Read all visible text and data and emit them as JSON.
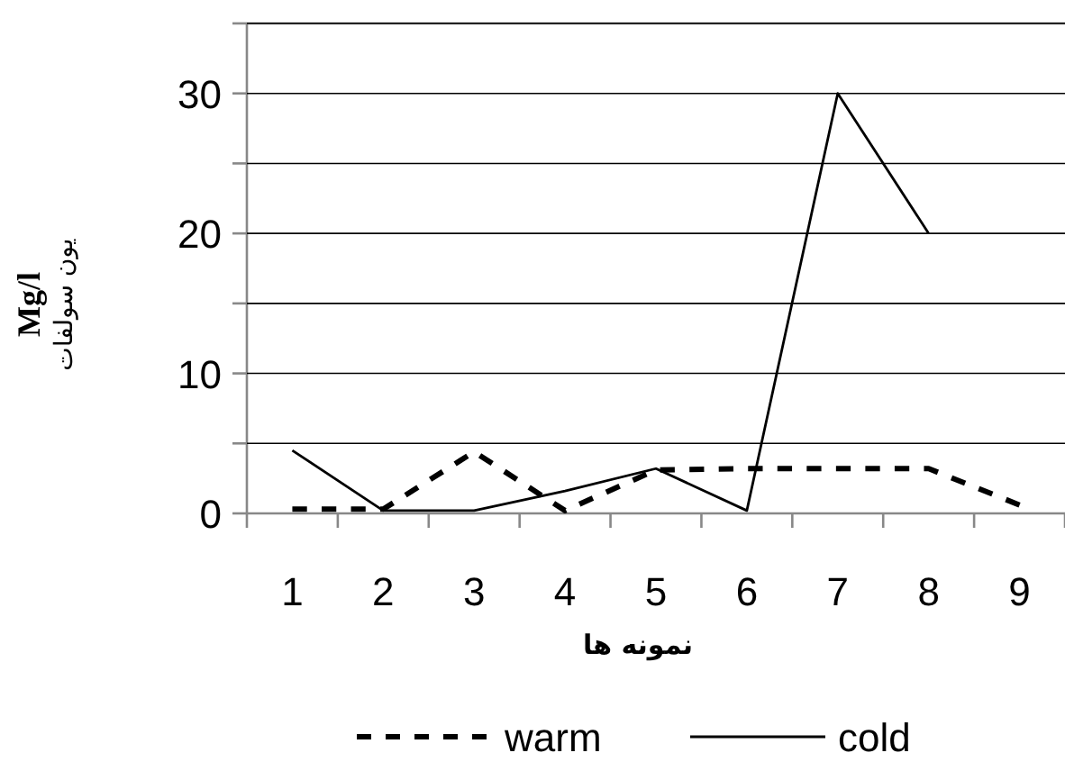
{
  "chart_data": {
    "type": "line",
    "xlabel": "نمونه ها",
    "ylabel": "Mg/l\nیون سولفات",
    "categories": [
      "1",
      "2",
      "3",
      "4",
      "5",
      "6",
      "7",
      "8",
      "9"
    ],
    "series": [
      {
        "name": "warm",
        "color": "#000000",
        "line_style": "dashed",
        "values": [
          0.3,
          0.3,
          4.4,
          0.2,
          3.1,
          3.2,
          3.2,
          3.2,
          0.6
        ]
      },
      {
        "name": "cold",
        "color": "#000000",
        "line_style": "solid",
        "values": [
          4.5,
          0.2,
          0.2,
          1.6,
          3.2,
          0.2,
          30,
          20,
          null
        ]
      }
    ],
    "ylim": [
      0,
      35
    ],
    "yticks": [
      0,
      {
        "value": 5,
        "label": null
      },
      10,
      {
        "value": 15,
        "label": null
      },
      20,
      {
        "value": 25,
        "label": null
      },
      30,
      {
        "value": 35,
        "label": null
      }
    ],
    "grid": "y",
    "legend": "bottom",
    "marker": "none"
  }
}
